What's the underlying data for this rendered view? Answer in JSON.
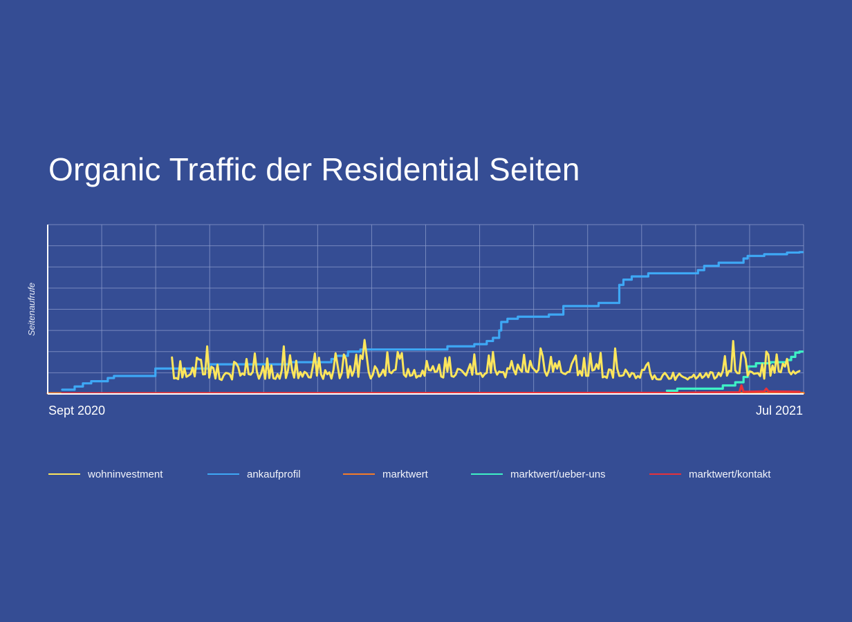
{
  "page": {
    "title": "Organic Traffic der Residential Seiten"
  },
  "chart_data": {
    "type": "line",
    "title": "Organic Traffic der Residential Seiten",
    "xlabel": "",
    "ylabel": "Seitenaufrufe",
    "x_tick_labels": [
      "Sept 2020",
      "Jul 2021"
    ],
    "xlim": [
      0,
      365
    ],
    "ylim": [
      0,
      800
    ],
    "y_gridlines": 8,
    "x_gridlines": 14,
    "grid": true,
    "legend_position": "bottom",
    "series": [
      {
        "name": "wohninvestment",
        "color": "#fde65c",
        "start_day": 60,
        "noise_seed": 17,
        "values_day_level": [
          [
            60,
            75
          ],
          [
            120,
            85
          ],
          [
            180,
            90
          ],
          [
            240,
            95
          ],
          [
            300,
            85
          ],
          [
            330,
            90
          ],
          [
            365,
            80
          ]
        ],
        "peaks": [
          [
            77,
            225
          ],
          [
            114,
            225
          ],
          [
            153,
            255
          ],
          [
            238,
            215
          ],
          [
            274,
            215
          ],
          [
            331,
            250
          ],
          [
            347,
            200
          ]
        ]
      },
      {
        "name": "ankaufprofil",
        "color": "#3ea8f5",
        "steps": [
          [
            7,
            20
          ],
          [
            13,
            35
          ],
          [
            17,
            50
          ],
          [
            21,
            60
          ],
          [
            29,
            75
          ],
          [
            32,
            85
          ],
          [
            52,
            120
          ],
          [
            78,
            140
          ],
          [
            117,
            150
          ],
          [
            137,
            165
          ],
          [
            139,
            180
          ],
          [
            145,
            200
          ],
          [
            151,
            210
          ],
          [
            193,
            225
          ],
          [
            206,
            235
          ],
          [
            212,
            250
          ],
          [
            215,
            265
          ],
          [
            218,
            300
          ],
          [
            219,
            340
          ],
          [
            222,
            355
          ],
          [
            227,
            365
          ],
          [
            242,
            375
          ],
          [
            249,
            415
          ],
          [
            266,
            430
          ],
          [
            276,
            515
          ],
          [
            278,
            540
          ],
          [
            282,
            555
          ],
          [
            290,
            570
          ],
          [
            314,
            585
          ],
          [
            317,
            605
          ],
          [
            324,
            620
          ],
          [
            336,
            640
          ],
          [
            338,
            652
          ],
          [
            346,
            660
          ],
          [
            357,
            668
          ],
          [
            363,
            670
          ]
        ]
      },
      {
        "name": "marktwert",
        "color": "#f57c28",
        "points": [
          [
            0,
            3
          ],
          [
            365,
            4
          ]
        ]
      },
      {
        "name": "marktwert/ueber-uns",
        "color": "#3ef2c6",
        "steps": [
          [
            299,
            15
          ],
          [
            304,
            25
          ],
          [
            326,
            40
          ],
          [
            332,
            55
          ],
          [
            336,
            80
          ],
          [
            338,
            130
          ],
          [
            342,
            145
          ],
          [
            349,
            150
          ],
          [
            357,
            160
          ],
          [
            359,
            175
          ],
          [
            361,
            195
          ],
          [
            363,
            200
          ]
        ]
      },
      {
        "name": "marktwert/kontakt",
        "color": "#e8323a",
        "points": [
          [
            7,
            3
          ],
          [
            300,
            5
          ],
          [
            334,
            8
          ],
          [
            335,
            40
          ],
          [
            336,
            10
          ],
          [
            346,
            12
          ],
          [
            347,
            25
          ],
          [
            348,
            12
          ],
          [
            363,
            10
          ]
        ]
      }
    ]
  }
}
